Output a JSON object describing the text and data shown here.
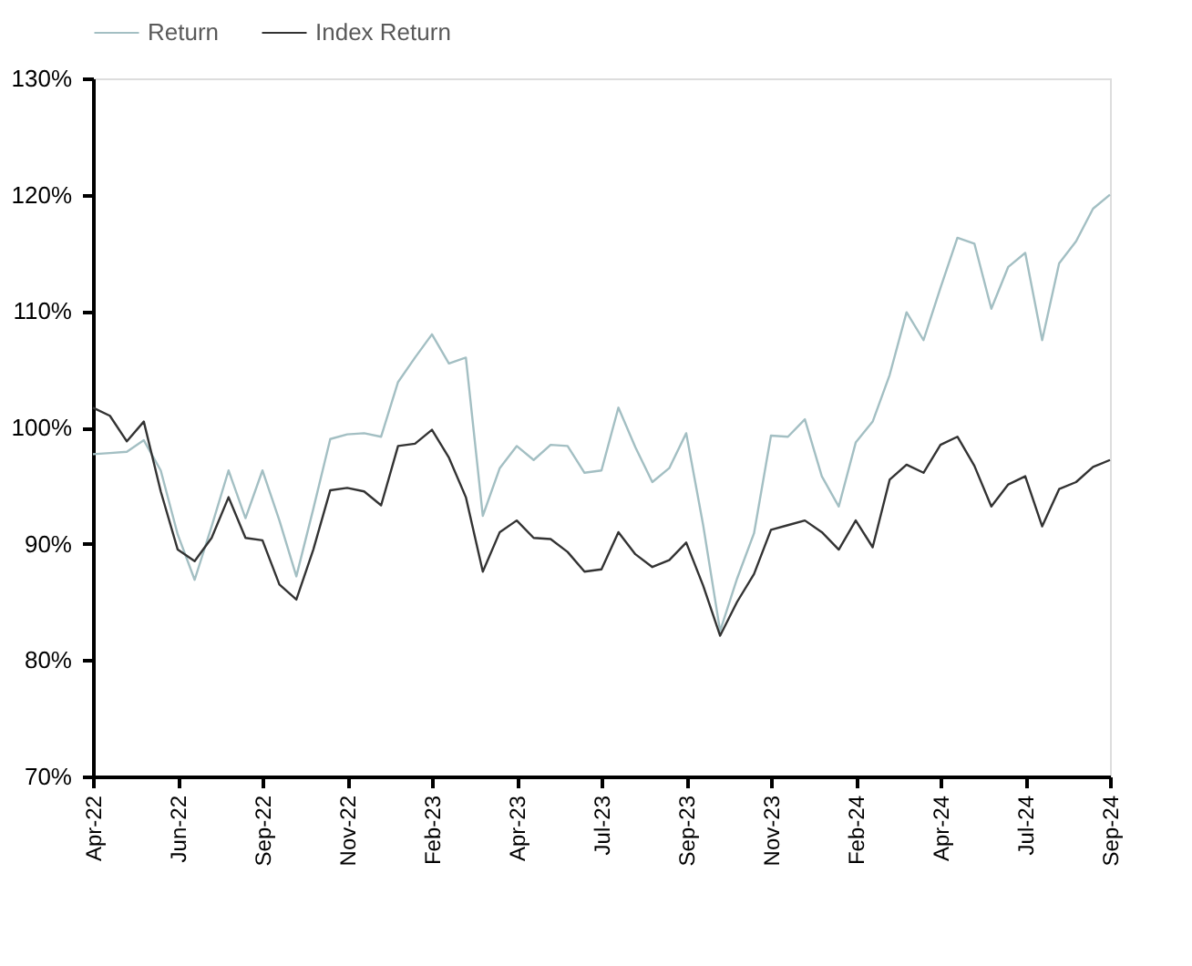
{
  "chart_data": {
    "type": "line",
    "ylim": [
      70,
      130
    ],
    "categories": [
      "Apr-22",
      null,
      null,
      null,
      null,
      "Jun-22",
      null,
      null,
      null,
      null,
      "Sep-22",
      null,
      null,
      null,
      null,
      "Nov-22",
      null,
      null,
      null,
      null,
      "Feb-23",
      null,
      null,
      null,
      null,
      "Apr-23",
      null,
      null,
      null,
      null,
      "Jul-23",
      null,
      null,
      null,
      null,
      "Sep-23",
      null,
      null,
      null,
      null,
      "Nov-23",
      null,
      null,
      null,
      null,
      "Feb-24",
      null,
      null,
      null,
      null,
      "Apr-24",
      null,
      null,
      null,
      null,
      "Jul-24",
      null,
      null,
      null,
      null,
      "Sep-24"
    ],
    "yticks": [
      {
        "value": 70,
        "label": "70%"
      },
      {
        "value": 80,
        "label": "80%"
      },
      {
        "value": 90,
        "label": "90%"
      },
      {
        "value": 100,
        "label": "100%"
      },
      {
        "value": 110,
        "label": "110%"
      },
      {
        "value": 120,
        "label": "120%"
      },
      {
        "value": 130,
        "label": "130%"
      }
    ],
    "legend": "top",
    "series": [
      {
        "name": "Return",
        "color": "#a3bfc3",
        "values": [
          97.7,
          97.8,
          97.9,
          98.9,
          96.3,
          90.8,
          86.9,
          91.5,
          96.3,
          92.2,
          96.3,
          92.0,
          87.2,
          93.0,
          99.0,
          99.4,
          99.5,
          99.2,
          103.9,
          106.0,
          108.0,
          105.5,
          106.0,
          92.4,
          96.5,
          98.4,
          97.2,
          98.5,
          98.4,
          96.1,
          96.3,
          101.7,
          98.3,
          95.3,
          96.5,
          99.5,
          91.6,
          82.5,
          87.0,
          90.9,
          99.3,
          99.2,
          100.7,
          95.8,
          93.2,
          98.7,
          100.5,
          104.5,
          109.9,
          107.5,
          112.0,
          116.3,
          115.8,
          110.2,
          113.8,
          115.0,
          107.5,
          114.1,
          116.0,
          118.8,
          120.0
        ]
      },
      {
        "name": "Index Return",
        "color": "#333333",
        "values": [
          101.7,
          101.0,
          98.8,
          100.5,
          94.5,
          89.5,
          88.5,
          90.5,
          94.0,
          90.5,
          90.3,
          86.5,
          85.2,
          89.5,
          94.6,
          94.8,
          94.5,
          93.3,
          98.4,
          98.6,
          99.8,
          97.4,
          94.0,
          87.6,
          91.0,
          92.0,
          90.5,
          90.4,
          89.3,
          87.6,
          87.8,
          91.0,
          89.1,
          88.0,
          88.6,
          90.1,
          86.4,
          82.1,
          85.0,
          87.4,
          91.2,
          91.6,
          92.0,
          91.0,
          89.5,
          92.0,
          89.7,
          95.5,
          96.8,
          96.1,
          98.5,
          99.2,
          96.7,
          93.2,
          95.1,
          95.8,
          91.5,
          94.7,
          95.3,
          96.6,
          97.2
        ]
      }
    ]
  }
}
